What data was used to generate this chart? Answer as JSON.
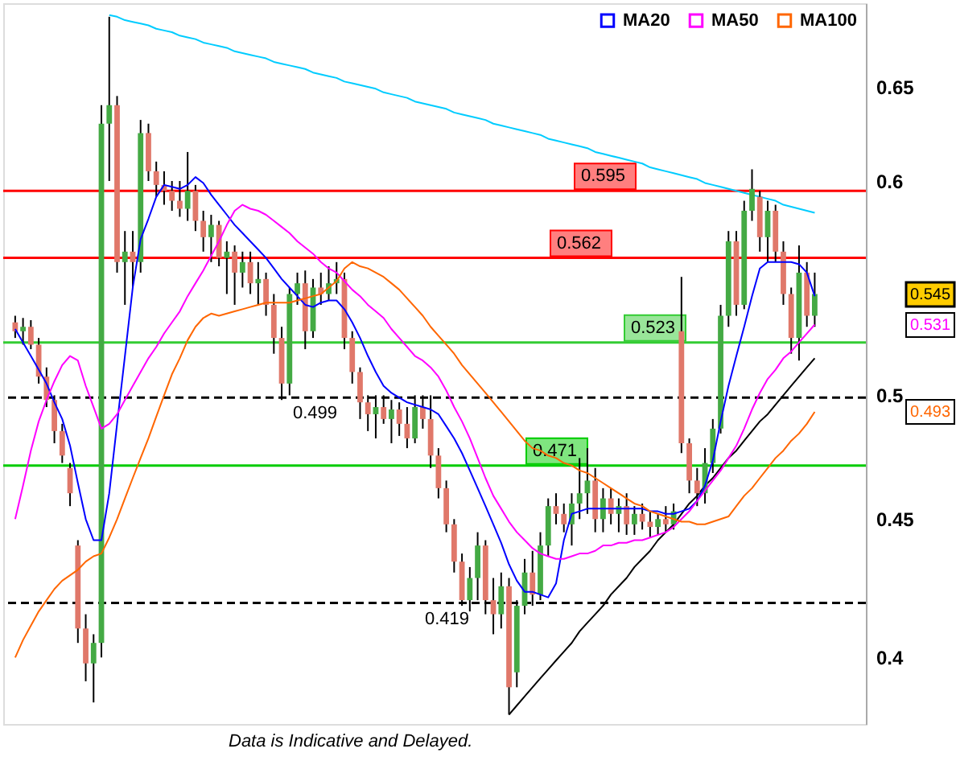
{
  "chart_data": {
    "type": "candlestick",
    "categories": [
      null,
      null,
      null,
      null,
      null,
      null,
      null,
      null,
      null,
      null,
      null,
      null,
      null,
      null,
      null,
      null,
      null,
      null,
      null,
      null,
      null,
      null,
      null,
      null,
      null,
      null,
      null,
      null,
      null,
      null,
      null,
      null,
      null,
      null,
      null,
      null,
      null,
      null,
      null,
      null,
      null,
      null,
      null,
      null,
      null,
      null,
      null,
      null,
      null,
      null,
      null,
      null,
      null,
      null,
      null,
      null,
      null,
      null,
      null,
      null,
      null,
      null,
      null,
      null,
      null,
      null,
      null,
      null,
      null,
      null,
      null,
      null,
      null,
      null,
      null,
      null,
      null,
      null,
      null,
      null,
      null,
      null,
      null,
      null,
      null,
      null,
      null,
      null,
      null,
      null,
      null,
      null,
      null,
      null,
      null,
      null,
      null,
      null,
      null,
      null,
      null,
      null,
      null
    ],
    "ohlc": [
      [
        0.532,
        0.535,
        0.525,
        0.528
      ],
      [
        0.528,
        0.534,
        0.522,
        0.53
      ],
      [
        0.53,
        0.533,
        0.52,
        0.522
      ],
      [
        0.522,
        0.525,
        0.505,
        0.508
      ],
      [
        0.508,
        0.512,
        0.495,
        0.498
      ],
      [
        0.498,
        0.5,
        0.48,
        0.485
      ],
      [
        0.485,
        0.488,
        0.472,
        0.475
      ],
      [
        0.47,
        0.472,
        0.455,
        0.46
      ],
      [
        0.44,
        0.442,
        0.405,
        0.41
      ],
      [
        0.41,
        0.415,
        0.392,
        0.398
      ],
      [
        0.398,
        0.408,
        0.385,
        0.405
      ],
      [
        0.405,
        0.64,
        0.4,
        0.63
      ],
      [
        0.63,
        0.69,
        0.6,
        0.64
      ],
      [
        0.64,
        0.645,
        0.555,
        0.56
      ],
      [
        0.56,
        0.575,
        0.54,
        0.565
      ],
      [
        0.565,
        0.575,
        0.548,
        0.56
      ],
      [
        0.56,
        0.632,
        0.555,
        0.625
      ],
      [
        0.625,
        0.63,
        0.6,
        0.605
      ],
      [
        0.605,
        0.61,
        0.592,
        0.598
      ],
      [
        0.598,
        0.605,
        0.588,
        0.595
      ],
      [
        0.595,
        0.6,
        0.585,
        0.59
      ],
      [
        0.59,
        0.6,
        0.582,
        0.586
      ],
      [
        0.586,
        0.615,
        0.58,
        0.595
      ],
      [
        0.595,
        0.598,
        0.575,
        0.58
      ],
      [
        0.58,
        0.585,
        0.565,
        0.572
      ],
      [
        0.572,
        0.583,
        0.56,
        0.578
      ],
      [
        0.578,
        0.58,
        0.558,
        0.562
      ],
      [
        0.562,
        0.57,
        0.545,
        0.565
      ],
      [
        0.565,
        0.568,
        0.54,
        0.555
      ],
      [
        0.555,
        0.565,
        0.548,
        0.56
      ],
      [
        0.56,
        0.565,
        0.545,
        0.55
      ],
      [
        0.55,
        0.56,
        0.54,
        0.552
      ],
      [
        0.552,
        0.555,
        0.535,
        0.54
      ],
      [
        0.54,
        0.545,
        0.518,
        0.525
      ],
      [
        0.525,
        0.53,
        0.498,
        0.505
      ],
      [
        0.505,
        0.548,
        0.5,
        0.545
      ],
      [
        0.545,
        0.555,
        0.54,
        0.55
      ],
      [
        0.55,
        0.556,
        0.52,
        0.528
      ],
      [
        0.528,
        0.552,
        0.525,
        0.548
      ],
      [
        0.548,
        0.555,
        0.54,
        0.545
      ],
      [
        0.545,
        0.558,
        0.542,
        0.55
      ],
      [
        0.55,
        0.56,
        0.545,
        0.552
      ],
      [
        0.552,
        0.555,
        0.52,
        0.525
      ],
      [
        0.525,
        0.528,
        0.505,
        0.51
      ],
      [
        0.51,
        0.512,
        0.49,
        0.497
      ],
      [
        0.497,
        0.5,
        0.485,
        0.492
      ],
      [
        0.492,
        0.5,
        0.482,
        0.495
      ],
      [
        0.495,
        0.5,
        0.488,
        0.49
      ],
      [
        0.49,
        0.498,
        0.48,
        0.494
      ],
      [
        0.494,
        0.497,
        0.483,
        0.488
      ],
      [
        0.488,
        0.495,
        0.478,
        0.482
      ],
      [
        0.482,
        0.5,
        0.48,
        0.495
      ],
      [
        0.495,
        0.5,
        0.486,
        0.49
      ],
      [
        0.49,
        0.5,
        0.47,
        0.475
      ],
      [
        0.475,
        0.478,
        0.458,
        0.462
      ],
      [
        0.462,
        0.465,
        0.445,
        0.448
      ],
      [
        0.448,
        0.45,
        0.43,
        0.434
      ],
      [
        0.434,
        0.437,
        0.418,
        0.42
      ],
      [
        0.42,
        0.432,
        0.416,
        0.428
      ],
      [
        0.428,
        0.445,
        0.42,
        0.44
      ],
      [
        0.44,
        0.442,
        0.415,
        0.42
      ],
      [
        0.42,
        0.428,
        0.408,
        0.415
      ],
      [
        0.415,
        0.43,
        0.41,
        0.425
      ],
      [
        0.425,
        0.428,
        0.381,
        0.39
      ],
      [
        0.395,
        0.42,
        0.39,
        0.418
      ],
      [
        0.418,
        0.435,
        0.415,
        0.43
      ],
      [
        0.43,
        0.438,
        0.418,
        0.422
      ],
      [
        0.422,
        0.445,
        0.42,
        0.44
      ],
      [
        0.44,
        0.458,
        0.436,
        0.455
      ],
      [
        0.455,
        0.46,
        0.448,
        0.452
      ],
      [
        0.452,
        0.456,
        0.445,
        0.448
      ],
      [
        0.448,
        0.46,
        0.44,
        0.456
      ],
      [
        0.456,
        0.474,
        0.45,
        0.46
      ],
      [
        0.46,
        0.478,
        0.452,
        0.465
      ],
      [
        0.465,
        0.47,
        0.445,
        0.45
      ],
      [
        0.45,
        0.462,
        0.445,
        0.458
      ],
      [
        0.458,
        0.462,
        0.448,
        0.452
      ],
      [
        0.452,
        0.458,
        0.445,
        0.455
      ],
      [
        0.455,
        0.46,
        0.444,
        0.448
      ],
      [
        0.448,
        0.455,
        0.444,
        0.452
      ],
      [
        0.452,
        0.456,
        0.446,
        0.449
      ],
      [
        0.449,
        0.453,
        0.443,
        0.447
      ],
      [
        0.447,
        0.452,
        0.444,
        0.45
      ],
      [
        0.45,
        0.455,
        0.445,
        0.448
      ],
      [
        0.448,
        0.456,
        0.446,
        0.453
      ],
      [
        0.528,
        0.553,
        0.476,
        0.48
      ],
      [
        0.48,
        0.482,
        0.46,
        0.465
      ],
      [
        0.465,
        0.47,
        0.455,
        0.46
      ],
      [
        0.46,
        0.478,
        0.456,
        0.472
      ],
      [
        0.472,
        0.49,
        0.468,
        0.486
      ],
      [
        0.486,
        0.54,
        0.484,
        0.535
      ],
      [
        0.535,
        0.575,
        0.53,
        0.57
      ],
      [
        0.57,
        0.575,
        0.535,
        0.54
      ],
      [
        0.54,
        0.59,
        0.538,
        0.585
      ],
      [
        0.585,
        0.606,
        0.58,
        0.596
      ],
      [
        0.592,
        0.595,
        0.565,
        0.572
      ],
      [
        0.572,
        0.59,
        0.56,
        0.585
      ],
      [
        0.585,
        0.588,
        0.56,
        0.565
      ],
      [
        0.565,
        0.57,
        0.54,
        0.545
      ],
      [
        0.545,
        0.548,
        0.518,
        0.525
      ],
      [
        0.525,
        0.568,
        0.515,
        0.555
      ],
      [
        0.555,
        0.56,
        0.53,
        0.535
      ],
      [
        0.535,
        0.555,
        0.53,
        0.545
      ]
    ],
    "series": [
      {
        "name": "MA20",
        "type": "line",
        "color": "#0000ff",
        "values": [
          0.529,
          0.523,
          0.517,
          0.511,
          0.505,
          0.497,
          0.49,
          0.479,
          0.464,
          0.45,
          0.442,
          0.442,
          0.46,
          0.488,
          0.517,
          0.548,
          0.571,
          0.581,
          0.592,
          0.598,
          0.597,
          0.596,
          0.598,
          0.602,
          0.599,
          0.593,
          0.588,
          0.583,
          0.578,
          0.574,
          0.57,
          0.566,
          0.562,
          0.557,
          0.552,
          0.548,
          0.544,
          0.54,
          0.539,
          0.541,
          0.542,
          0.542,
          0.538,
          0.532,
          0.525,
          0.517,
          0.51,
          0.504,
          0.501,
          0.499,
          0.497,
          0.496,
          0.495,
          0.494,
          0.492,
          0.487,
          0.482,
          0.476,
          0.469,
          0.462,
          0.455,
          0.448,
          0.441,
          0.433,
          0.427,
          0.423,
          0.423,
          0.422,
          0.421,
          0.426,
          0.442,
          0.452,
          0.453,
          0.454,
          0.454,
          0.454,
          0.454,
          0.454,
          0.454,
          0.454,
          0.454,
          0.453,
          0.453,
          0.452,
          0.452,
          0.453,
          0.454,
          0.457,
          0.463,
          0.473,
          0.489,
          0.504,
          0.517,
          0.53,
          0.544,
          0.557,
          0.56,
          0.56,
          0.56,
          0.56,
          0.559,
          0.555,
          0.544
        ]
      },
      {
        "name": "MA50",
        "type": "line",
        "color": "#ff00ff",
        "values": [
          0.45,
          0.463,
          0.477,
          0.489,
          0.498,
          0.506,
          0.513,
          0.517,
          0.515,
          0.504,
          0.495,
          0.486,
          0.488,
          0.492,
          0.498,
          0.504,
          0.51,
          0.516,
          0.521,
          0.527,
          0.532,
          0.537,
          0.544,
          0.55,
          0.556,
          0.563,
          0.57,
          0.578,
          0.585,
          0.588,
          0.586,
          0.585,
          0.583,
          0.58,
          0.577,
          0.574,
          0.57,
          0.567,
          0.564,
          0.56,
          0.557,
          0.555,
          0.551,
          0.547,
          0.544,
          0.54,
          0.537,
          0.534,
          0.529,
          0.525,
          0.521,
          0.517,
          0.515,
          0.512,
          0.508,
          0.502,
          0.495,
          0.489,
          0.482,
          0.474,
          0.466,
          0.459,
          0.454,
          0.449,
          0.445,
          0.442,
          0.439,
          0.437,
          0.436,
          0.435,
          0.435,
          0.436,
          0.437,
          0.437,
          0.438,
          0.44,
          0.44,
          0.441,
          0.441,
          0.442,
          0.442,
          0.443,
          0.444,
          0.445,
          0.447,
          0.45,
          0.453,
          0.457,
          0.461,
          0.465,
          0.469,
          0.474,
          0.479,
          0.486,
          0.494,
          0.501,
          0.507,
          0.511,
          0.516,
          0.519,
          0.523,
          0.527,
          0.531
        ]
      },
      {
        "name": "MA100",
        "type": "line",
        "color": "#ff6600",
        "values": [
          0.4,
          0.406,
          0.411,
          0.416,
          0.42,
          0.424,
          0.427,
          0.429,
          0.431,
          0.434,
          0.436,
          0.437,
          0.443,
          0.45,
          0.458,
          0.466,
          0.474,
          0.482,
          0.491,
          0.5,
          0.509,
          0.516,
          0.524,
          0.53,
          0.534,
          0.536,
          0.535,
          0.536,
          0.537,
          0.538,
          0.539,
          0.54,
          0.541,
          0.541,
          0.541,
          0.541,
          0.542,
          0.543,
          0.544,
          0.545,
          0.548,
          0.551,
          0.557,
          0.56,
          0.558,
          0.557,
          0.555,
          0.553,
          0.55,
          0.547,
          0.543,
          0.539,
          0.535,
          0.53,
          0.526,
          0.522,
          0.518,
          0.513,
          0.509,
          0.505,
          0.501,
          0.497,
          0.493,
          0.489,
          0.485,
          0.481,
          0.478,
          0.477,
          0.475,
          0.474,
          0.472,
          0.471,
          0.469,
          0.468,
          0.466,
          0.464,
          0.462,
          0.46,
          0.458,
          0.456,
          0.455,
          0.453,
          0.452,
          0.451,
          0.45,
          0.449,
          0.449,
          0.448,
          0.448,
          0.449,
          0.45,
          0.451,
          0.455,
          0.459,
          0.462,
          0.466,
          0.47,
          0.474,
          0.477,
          0.481,
          0.484,
          0.488,
          0.493
        ]
      },
      {
        "type": "line",
        "color": "#00ccff",
        "values": [
          null,
          null,
          null,
          null,
          null,
          null,
          null,
          null,
          null,
          null,
          null,
          null,
          0.691,
          0.69,
          0.688,
          0.687,
          0.686,
          0.685,
          0.683,
          0.682,
          0.681,
          0.679,
          0.678,
          0.677,
          0.675,
          0.674,
          0.673,
          0.672,
          0.67,
          0.669,
          0.668,
          0.667,
          0.666,
          0.664,
          0.663,
          0.662,
          0.661,
          0.66,
          0.658,
          0.657,
          0.656,
          0.655,
          0.653,
          0.652,
          0.651,
          0.65,
          0.649,
          0.647,
          0.646,
          0.645,
          0.644,
          0.642,
          0.641,
          0.64,
          0.639,
          0.638,
          0.636,
          0.635,
          0.634,
          0.633,
          0.632,
          0.63,
          0.629,
          0.628,
          0.627,
          0.626,
          0.625,
          0.624,
          0.622,
          0.621,
          0.62,
          0.619,
          0.618,
          0.617,
          0.615,
          0.614,
          0.613,
          0.612,
          0.611,
          0.61,
          0.609,
          0.607,
          0.606,
          0.605,
          0.604,
          0.603,
          0.602,
          0.601,
          0.599,
          0.598,
          0.597,
          0.596,
          0.595,
          0.594,
          0.593,
          0.592,
          0.591,
          0.59,
          0.588,
          0.587,
          0.586,
          0.585,
          0.584
        ]
      },
      {
        "type": "line",
        "color": "#000000",
        "values": [
          null,
          null,
          null,
          null,
          null,
          null,
          null,
          null,
          null,
          null,
          null,
          null,
          null,
          null,
          null,
          null,
          null,
          null,
          null,
          null,
          null,
          null,
          null,
          null,
          null,
          null,
          null,
          null,
          null,
          null,
          null,
          null,
          null,
          null,
          null,
          null,
          null,
          null,
          null,
          null,
          null,
          null,
          null,
          null,
          null,
          null,
          null,
          null,
          null,
          null,
          null,
          null,
          null,
          null,
          null,
          null,
          null,
          null,
          null,
          null,
          null,
          null,
          null,
          0.381,
          0.384,
          0.387,
          0.39,
          0.393,
          0.396,
          0.399,
          0.402,
          0.405,
          0.409,
          0.412,
          0.415,
          0.418,
          0.422,
          0.425,
          0.428,
          0.432,
          0.435,
          0.438,
          0.442,
          0.445,
          0.448,
          0.452,
          0.456,
          0.459,
          0.463,
          0.466,
          0.47,
          0.474,
          0.477,
          0.481,
          0.485,
          0.489,
          0.492,
          0.496,
          0.5,
          0.504,
          0.508,
          0.512,
          0.516
        ]
      }
    ],
    "ylim": [
      0.378,
      0.698
    ],
    "yticks": [
      0.4,
      0.45,
      0.5,
      0.6,
      0.65
    ],
    "log": "y",
    "tick_labels": "y",
    "legend": "top right",
    "ref_lines": [
      {
        "axis": "y",
        "value": 0.595,
        "label": "0.595",
        "color": "#ff0000",
        "line_style": "solid"
      },
      {
        "axis": "y",
        "value": 0.562,
        "label": "0.562",
        "color": "#ff0000",
        "line_style": "solid"
      },
      {
        "axis": "y",
        "value": 0.523,
        "label": "0.523",
        "color": "#33cc33",
        "line_style": "solid"
      },
      {
        "axis": "y",
        "value": 0.471,
        "label": "0.471",
        "color": "#00cc00",
        "line_style": "solid"
      },
      {
        "axis": "y",
        "value": 0.499,
        "label": "0.499",
        "color": "#000000",
        "line_style": "dashed"
      },
      {
        "axis": "y",
        "value": 0.419,
        "label": "0.419",
        "color": "#000000",
        "line_style": "dashed"
      }
    ],
    "annotations": [
      "0.545",
      "0.531",
      "0.493",
      "Data is Indicative and Delayed."
    ]
  }
}
